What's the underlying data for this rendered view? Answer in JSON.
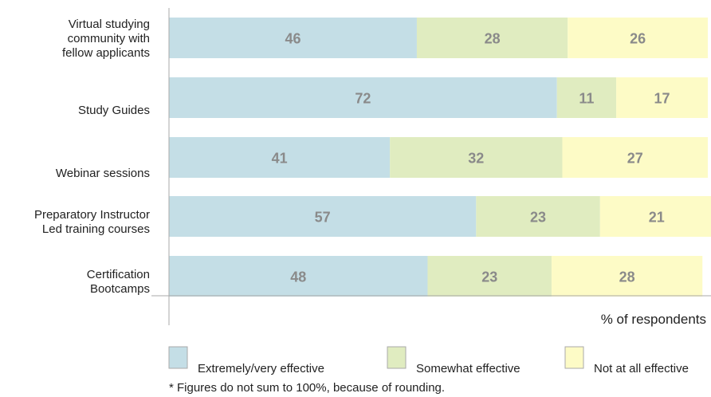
{
  "chart_data": {
    "type": "bar",
    "orientation": "horizontal",
    "stacked": true,
    "categories": [
      [
        "Virtual studying",
        "community with",
        "fellow applicants"
      ],
      [
        "Study Guides"
      ],
      [
        "Webinar sessions"
      ],
      [
        "Preparatory Instructor",
        "Led training courses"
      ],
      [
        "Certification",
        "Bootcamps"
      ]
    ],
    "series": [
      {
        "name": "Extremely/very effective",
        "color": "#c4dee6",
        "values": [
          46,
          72,
          41,
          57,
          48
        ]
      },
      {
        "name": "Somewhat effective",
        "color": "#e0ecc0",
        "values": [
          28,
          11,
          32,
          23,
          23
        ]
      },
      {
        "name": "Not at all effective",
        "color": "#fdfbc6",
        "values": [
          26,
          17,
          27,
          21,
          28
        ]
      }
    ],
    "xlabel": "% of respondents",
    "xlim": [
      0,
      100
    ],
    "grid": false,
    "legend_position": "bottom",
    "footnote": "* Figures do not sum to 100%, because of rounding."
  }
}
